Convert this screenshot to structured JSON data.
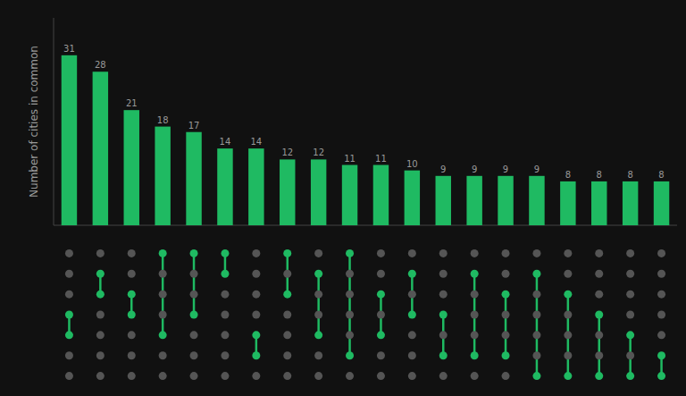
{
  "chart_data": {
    "type": "bar",
    "ylabel": "Number of cities in common",
    "values": [
      31,
      28,
      21,
      18,
      17,
      14,
      14,
      12,
      12,
      11,
      11,
      10,
      9,
      9,
      9,
      9,
      8,
      8,
      8,
      8
    ],
    "color": "#1fba62",
    "ylim": [
      0,
      37.82
    ],
    "tick_labels": false,
    "data_labels": true,
    "grid": false,
    "n_sets": 7,
    "connections": [
      [
        3,
        4
      ],
      [
        1,
        2
      ],
      [
        2,
        3
      ],
      [
        0,
        4
      ],
      [
        0,
        3
      ],
      [
        0,
        1
      ],
      [
        4,
        5
      ],
      [
        0,
        2
      ],
      [
        1,
        4
      ],
      [
        0,
        5
      ],
      [
        2,
        4
      ],
      [
        1,
        3
      ],
      [
        3,
        5
      ],
      [
        1,
        5
      ],
      [
        2,
        5
      ],
      [
        1,
        6
      ],
      [
        2,
        6
      ],
      [
        3,
        6
      ],
      [
        4,
        6
      ],
      [
        5,
        6
      ]
    ]
  }
}
